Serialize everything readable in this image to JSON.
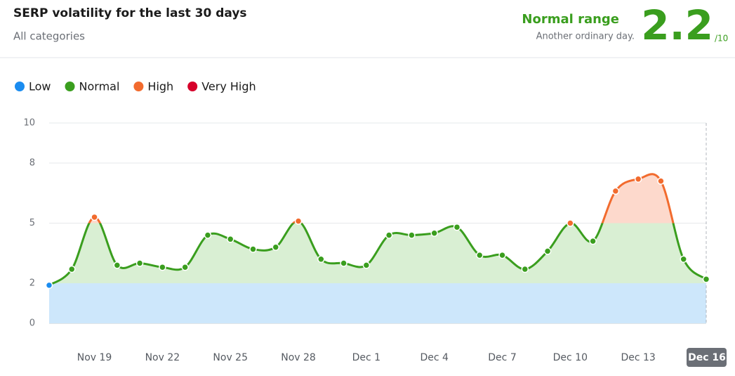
{
  "header": {
    "title": "SERP volatility for the last 30 days",
    "subtitle": "All categories",
    "status": "Normal range",
    "status_note": "Another ordinary day.",
    "score": 2.2,
    "score_suffix": "/10"
  },
  "chart_data": {
    "type": "line",
    "categories": [
      null,
      null,
      "Nov 19",
      null,
      null,
      "Nov 22",
      null,
      null,
      "Nov 25",
      null,
      null,
      "Nov 28",
      null,
      null,
      "Dec 1",
      null,
      null,
      "Dec 4",
      null,
      null,
      "Dec 7",
      null,
      null,
      "Dec 10",
      null,
      null,
      "Dec 13",
      null,
      null,
      "Dec 16"
    ],
    "values": [
      1.9,
      2.7,
      5.3,
      2.9,
      3.0,
      2.8,
      2.8,
      4.4,
      4.2,
      3.7,
      3.8,
      5.1,
      3.2,
      3.0,
      2.9,
      4.4,
      4.4,
      4.5,
      4.8,
      3.4,
      3.4,
      2.7,
      3.6,
      5.0,
      4.1,
      6.6,
      7.2,
      7.1,
      3.2,
      2.2
    ],
    "levels": [
      {
        "name": "Low",
        "color": "#1a8cf0",
        "fill": "#cde7fb"
      },
      {
        "name": "Normal",
        "color": "#3a9e1e",
        "fill": "#d9efd3"
      },
      {
        "name": "High",
        "color": "#f26b2e",
        "fill": "#fdd9cc"
      },
      {
        "name": "Very High",
        "color": "#d6002a",
        "fill": "#f7c9d2"
      }
    ],
    "ylim": [
      0,
      10
    ],
    "yticks": [
      0,
      2,
      5,
      8,
      10
    ],
    "grid": true,
    "highlight_last": true
  }
}
